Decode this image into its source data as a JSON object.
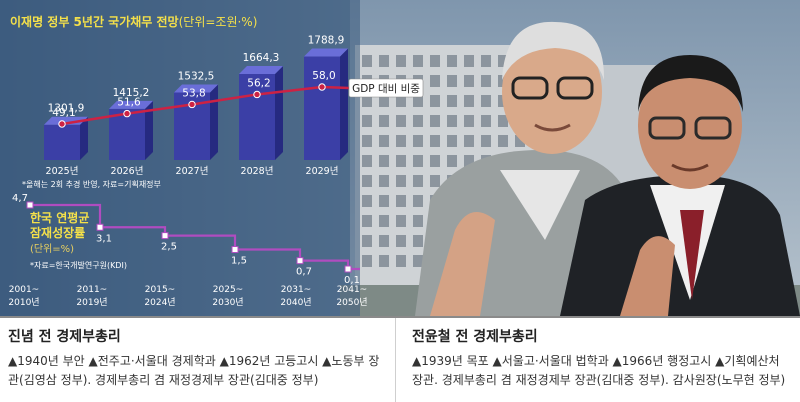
{
  "chart_data": [
    {
      "type": "bar",
      "title": "이재명 정부 5년간 국가채무 전망",
      "unit_label": "(단위=조원·%)",
      "categories": [
        "2025년",
        "2026년",
        "2027년",
        "2028년",
        "2029년"
      ],
      "series": [
        {
          "values": [
            1301.9,
            1415.2,
            1532.5,
            1664.3,
            1788.9
          ]
        },
        {
          "name": "GDP 대비 비중",
          "type": "line",
          "values": [
            49.1,
            51.6,
            53.8,
            56.2,
            58.0
          ]
        }
      ],
      "value_labels": [
        "1301,9",
        "1415,2",
        "1532,5",
        "1664,3",
        "1788,9"
      ],
      "ratio_labels": [
        "49,1",
        "51,6",
        "53,8",
        "56,2",
        "58,0"
      ],
      "note": "*올해는 2회 추경 반영, 자료=기획재정부"
    },
    {
      "type": "line",
      "title_lines": [
        "한국 연평균",
        "잠재성장률"
      ],
      "unit_label": "(단위=%)",
      "source": "*자료=한국개발연구원(KDI)",
      "categories": [
        [
          "2001~",
          "2010년"
        ],
        [
          "2011~",
          "2019년"
        ],
        [
          "2015~",
          "2024년"
        ],
        [
          "2025~",
          "2030년"
        ],
        [
          "2031~",
          "2040년"
        ],
        [
          "2041~",
          "2050년"
        ]
      ],
      "values": [
        4.7,
        3.1,
        2.5,
        1.5,
        0.7,
        0.1
      ],
      "value_labels": [
        "4,7",
        "3,1",
        "2,5",
        "1,5",
        "0,7",
        "0,1"
      ]
    }
  ],
  "profiles": [
    {
      "name": "진념 전 경제부총리",
      "bio": "▲1940년 부안 ▲전주고·서울대 경제학과 ▲1962년 고등고시 ▲노동부 장관(김영삼 정부). 경제부총리 겸 재정경제부 장관(김대중 정부)"
    },
    {
      "name": "전윤철 전 경제부총리",
      "bio": "▲1939년 목포 ▲서울고·서울대 법학과 ▲1966년 행정고시 ▲기획예산처 장관. 경제부총리 겸 재정경제부 장관(김대중 정부). 감사원장(노무현 정부)"
    }
  ],
  "colors": {
    "bar": "#3b3fa6",
    "bar_top": "#6a6ed8",
    "bar_side": "#262a80",
    "ratio_line": "#cc2244",
    "growth_line": "#b04cc0",
    "title": "#f4e04a",
    "background": "#4a6a8a"
  }
}
